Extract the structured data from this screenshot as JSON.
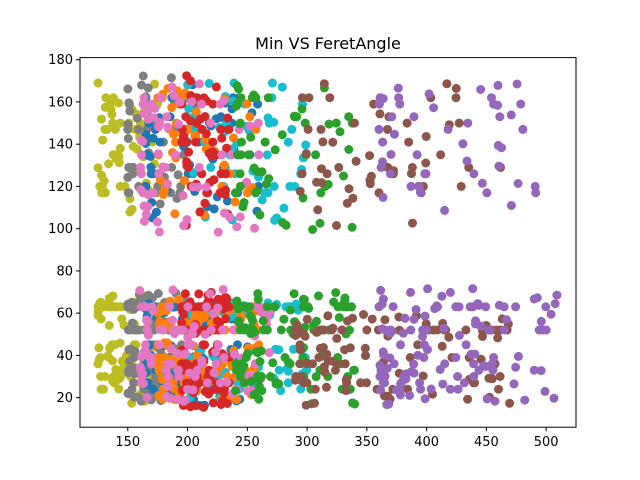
{
  "chart_data": {
    "type": "scatter",
    "title": "Min VS FeretAngle",
    "xlabel": "",
    "ylabel": "",
    "xlim": [
      110,
      525
    ],
    "ylim": [
      6,
      181
    ],
    "xticks": [
      150,
      200,
      250,
      300,
      350,
      400,
      450,
      500
    ],
    "yticks": [
      20,
      40,
      60,
      80,
      100,
      120,
      140,
      160,
      180
    ],
    "grid": false,
    "legend": "none",
    "series": [
      {
        "color": "#bcbd22",
        "xrange": [
          125,
          175
        ],
        "bands": [
          [
            14,
            46
          ],
          [
            54,
            70
          ],
          [
            107,
            174
          ]
        ]
      },
      {
        "color": "#7f7f7f",
        "xrange": [
          150,
          205
        ],
        "bands": [
          [
            18,
            46
          ],
          [
            52,
            70
          ],
          [
            110,
            173
          ]
        ]
      },
      {
        "color": "#1f77b4",
        "xrange": [
          165,
          260
        ],
        "bands": [
          [
            16,
            45
          ],
          [
            55,
            65
          ],
          [
            105,
            172
          ]
        ]
      },
      {
        "color": "#17becf",
        "xrange": [
          200,
          300
        ],
        "bands": [
          [
            18,
            44
          ],
          [
            58,
            65
          ],
          [
            103,
            170
          ]
        ]
      },
      {
        "color": "#ff7f0e",
        "xrange": [
          175,
          260
        ],
        "bands": [
          [
            18,
            46
          ],
          [
            52,
            67
          ],
          [
            100,
            168
          ]
        ]
      },
      {
        "color": "#d62728",
        "xrange": [
          195,
          235
        ],
        "bands": [
          [
            15,
            45
          ],
          [
            50,
            70
          ],
          [
            100,
            173
          ]
        ]
      },
      {
        "color": "#e377c2",
        "xrange": [
          160,
          270
        ],
        "bands": [
          [
            18,
            45
          ],
          [
            48,
            72
          ],
          [
            98,
            170
          ]
        ]
      },
      {
        "color": "#2ca02c",
        "xrange": [
          240,
          340
        ],
        "bands": [
          [
            16,
            44
          ],
          [
            50,
            70
          ],
          [
            99,
            168
          ]
        ]
      },
      {
        "color": "#8c564b",
        "xrange": [
          290,
          470
        ],
        "bands": [
          [
            16,
            45
          ],
          [
            48,
            60
          ],
          [
            100,
            172
          ]
        ]
      },
      {
        "color": "#9467bd",
        "xrange": [
          360,
          510
        ],
        "bands": [
          [
            16,
            45
          ],
          [
            48,
            72
          ],
          [
            105,
            172
          ]
        ]
      }
    ]
  }
}
